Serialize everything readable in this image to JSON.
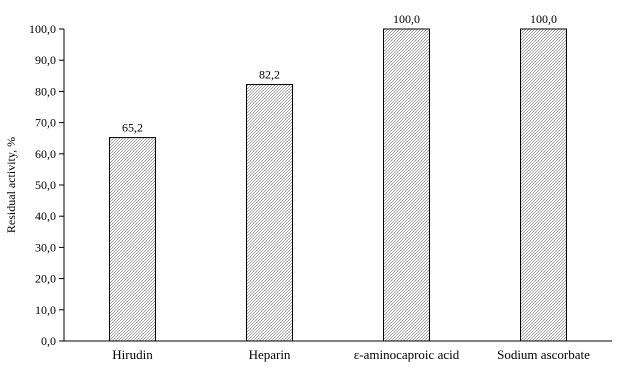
{
  "chart_data": {
    "type": "bar",
    "title": "",
    "xlabel": "",
    "ylabel": "Residual activity, %",
    "categories": [
      "Hirudin",
      "Heparin",
      "ε-aminocaproic acid",
      "Sodium ascorbate"
    ],
    "values": [
      65.2,
      82.2,
      100.0,
      100.0
    ],
    "data_labels": [
      "65,2",
      "82,2",
      "100,0",
      "100,0"
    ],
    "yticks": [
      "0,0",
      "10,0",
      "20,0",
      "30,0",
      "40,0",
      "50,0",
      "60,0",
      "70,0",
      "80,0",
      "90,0",
      "100,0"
    ],
    "ylim": [
      0,
      100
    ],
    "ytick_step": 10,
    "grid": false,
    "legend": "none",
    "bar_fill": "dotted-hatch",
    "bar_stroke": "#000000",
    "colors": {
      "axis": "#000000",
      "bar_pattern_base": "#ffffff",
      "bar_pattern_mark": "#8a8a8a"
    }
  }
}
